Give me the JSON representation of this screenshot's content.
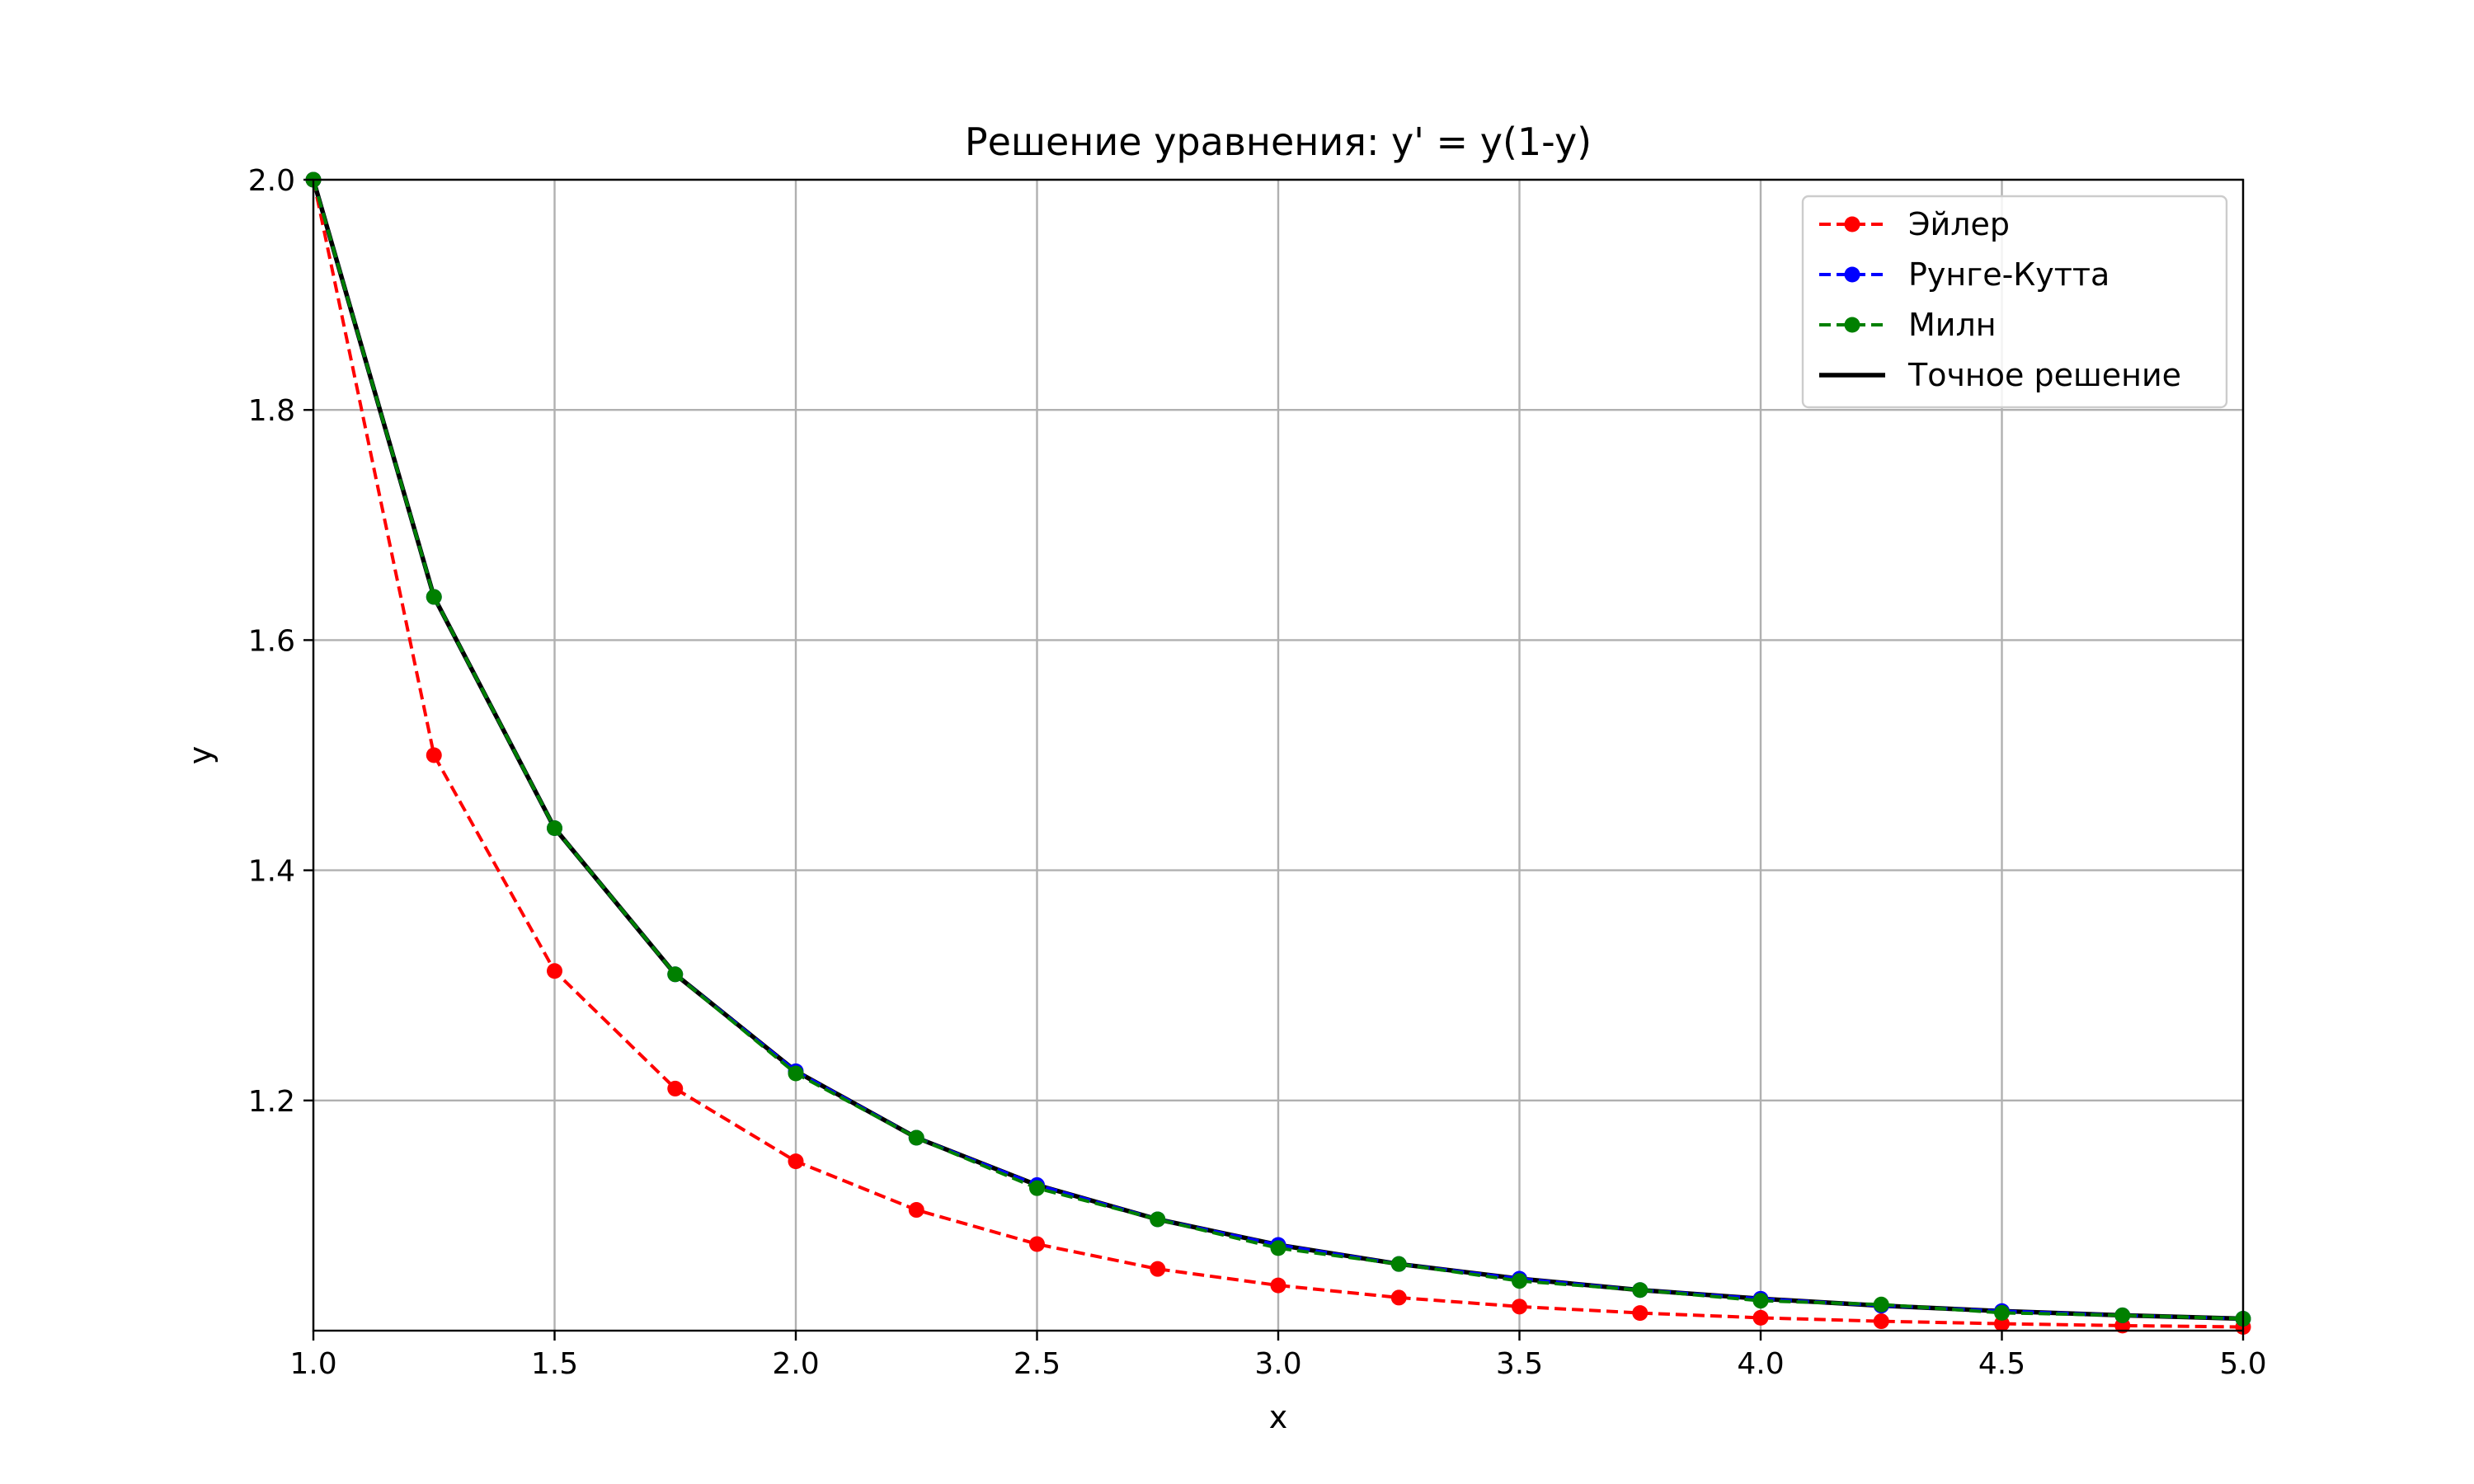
{
  "chart_data": {
    "type": "line",
    "title": "Решение уравнения: y' = y(1-y)",
    "xlabel": "x",
    "ylabel": "y",
    "xlim": [
      1.0,
      5.0
    ],
    "ylim": [
      1.0,
      2.0
    ],
    "grid": true,
    "legend_position": "top-right",
    "x_ticks": [
      "1.0",
      "1.5",
      "2.0",
      "2.5",
      "3.0",
      "3.5",
      "4.0",
      "4.5",
      "5.0"
    ],
    "y_ticks": [
      "1.2",
      "1.4",
      "1.6",
      "1.8",
      "2.0"
    ],
    "x": [
      1.0,
      1.25,
      1.5,
      1.75,
      2.0,
      2.25,
      2.5,
      2.75,
      3.0,
      3.25,
      3.5,
      3.75,
      4.0,
      4.25,
      4.5,
      4.75,
      5.0
    ],
    "series": [
      {
        "name": "Эйлер",
        "color": "#ff0000",
        "style": "dashed-markers",
        "values": [
          2.0,
          1.5,
          1.3125,
          1.2103,
          1.1471,
          1.1049,
          1.0752,
          1.0536,
          1.0393,
          1.0287,
          1.0209,
          1.0153,
          1.0112,
          1.0082,
          1.006,
          1.0044,
          1.0032
        ]
      },
      {
        "name": "Рунге-Кутта",
        "color": "#0000ff",
        "style": "dashed-markers",
        "values": [
          2.0,
          1.6375,
          1.4366,
          1.3096,
          1.2254,
          1.1676,
          1.1265,
          1.0967,
          1.0745,
          1.0579,
          1.0451,
          1.0353,
          1.0277,
          1.0217,
          1.017,
          1.0133,
          1.0104
        ]
      },
      {
        "name": "Милн",
        "color": "#008000",
        "style": "dashed-markers",
        "values": [
          2.0,
          1.6375,
          1.4366,
          1.3096,
          1.2235,
          1.1676,
          1.1238,
          1.0967,
          1.0717,
          1.0579,
          1.0432,
          1.0353,
          1.026,
          1.0227,
          1.0155,
          1.0133,
          1.0104
        ]
      },
      {
        "name": "Точное решение",
        "color": "#000000",
        "style": "solid",
        "values": [
          2.0,
          1.6375,
          1.4366,
          1.3096,
          1.2254,
          1.1676,
          1.1265,
          1.0967,
          1.0745,
          1.0579,
          1.0451,
          1.0353,
          1.0277,
          1.0217,
          1.017,
          1.0133,
          1.0104
        ]
      }
    ]
  }
}
